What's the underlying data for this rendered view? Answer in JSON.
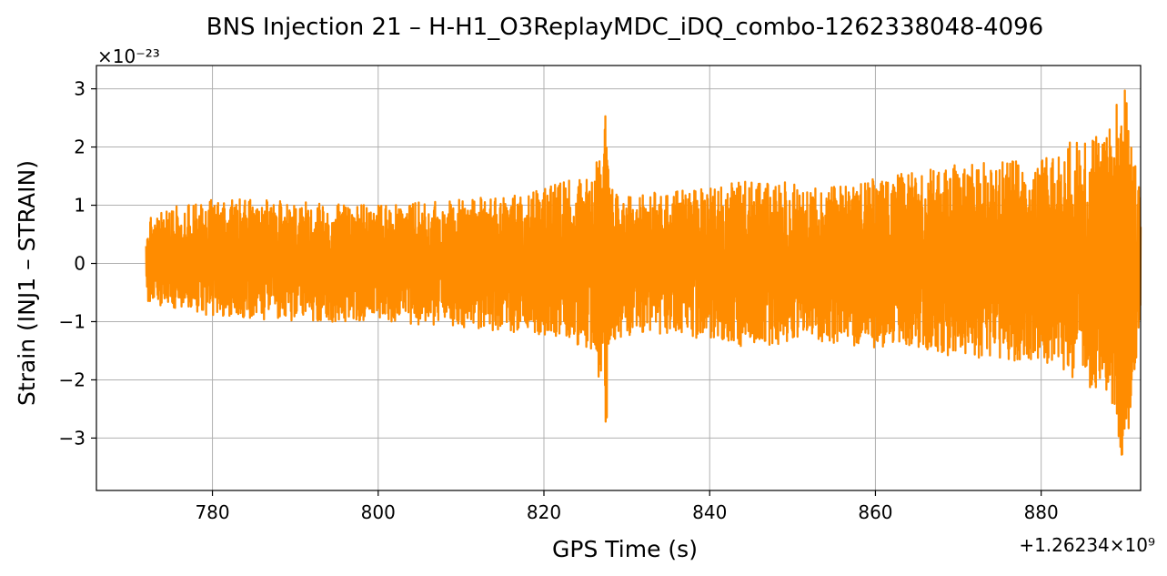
{
  "chart_data": {
    "type": "line",
    "title": "BNS Injection 21 – H-H1_O3ReplayMDC_iDQ_combo-1262338048-4096",
    "xlabel": "GPS Time (s)",
    "ylabel": "Strain (INJ1 – STRAIN)",
    "x_offset_text": "+1.26234×10⁹",
    "y_scale_text": "×10⁻²³",
    "xlim": [
      766,
      892
    ],
    "ylim": [
      -3.9,
      3.4
    ],
    "x_ticks": [
      780,
      800,
      820,
      840,
      860,
      880
    ],
    "x_tick_labels": [
      "780",
      "800",
      "820",
      "840",
      "860",
      "880"
    ],
    "y_ticks": [
      -3,
      -2,
      -1,
      0,
      1,
      2,
      3
    ],
    "y_tick_labels": [
      "−3",
      "−2",
      "−1",
      "0",
      "1",
      "2",
      "3"
    ],
    "grid": true,
    "series": [
      {
        "color": "#ff8c00",
        "x_range": [
          772,
          892
        ],
        "envelope": {
          "x": [
            772,
            776,
            780,
            790,
            800,
            810,
            818,
            822,
            826,
            827.5,
            828.5,
            832,
            840,
            846,
            852,
            860,
            870,
            880,
            885,
            888,
            890,
            892
          ],
          "upper": [
            0.8,
            1.0,
            1.1,
            1.1,
            1.0,
            1.1,
            1.2,
            1.4,
            1.5,
            2.6,
            1.2,
            1.2,
            1.3,
            1.5,
            1.3,
            1.5,
            1.7,
            1.8,
            2.2,
            2.3,
            3.1,
            1.1
          ],
          "lower": [
            -0.7,
            -0.8,
            -0.9,
            -1.0,
            -1.0,
            -1.1,
            -1.2,
            -1.3,
            -1.5,
            -2.8,
            -1.3,
            -1.2,
            -1.3,
            -1.5,
            -1.3,
            -1.5,
            -1.6,
            -1.7,
            -2.1,
            -2.2,
            -3.5,
            -1.1
          ]
        }
      }
    ]
  }
}
